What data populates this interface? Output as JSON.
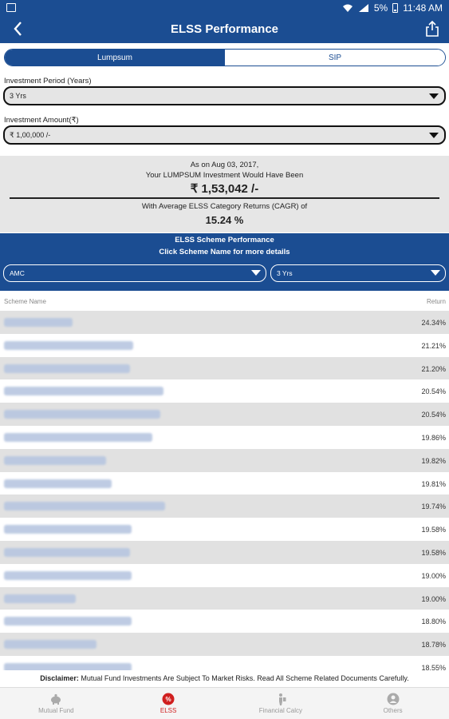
{
  "status": {
    "battery": "5%",
    "time": "11:48 AM"
  },
  "header": {
    "title": "ELSS Performance"
  },
  "tabs": [
    {
      "label": "Lumpsum",
      "active": true
    },
    {
      "label": "SIP",
      "active": false
    }
  ],
  "investment_period": {
    "label": "Investment Period (Years)",
    "value": "3 Yrs"
  },
  "investment_amount": {
    "label": "Investment Amount(₹)",
    "value": "₹ 1,00,000 /-"
  },
  "summary": {
    "as_on": "As on Aug 03, 2017,",
    "line2": "Your LUMPSUM Investment Would Have Been",
    "amount": "₹ 1,53,042 /-",
    "cagr_label": "With Average ELSS Category Returns (CAGR) of",
    "cagr_value": "15.24 %"
  },
  "performance": {
    "title": "ELSS Scheme Performance",
    "subtitle": "Click Scheme Name for more details",
    "amc_filter": "AMC",
    "period_filter": "3 Yrs"
  },
  "list_header": {
    "name": "Scheme Name",
    "return": "Return"
  },
  "rows": [
    {
      "return": "24.34%"
    },
    {
      "return": "21.21%"
    },
    {
      "return": "21.20%"
    },
    {
      "return": "20.54%"
    },
    {
      "return": "20.54%"
    },
    {
      "return": "19.86%"
    },
    {
      "return": "19.82%"
    },
    {
      "return": "19.81%"
    },
    {
      "return": "19.74%"
    },
    {
      "return": "19.58%"
    },
    {
      "return": "19.58%"
    },
    {
      "return": "19.00%"
    },
    {
      "return": "19.00%"
    },
    {
      "return": "18.80%"
    },
    {
      "return": "18.78%"
    },
    {
      "return": "18.55%"
    }
  ],
  "disclaimer": {
    "label": "Disclaimer:",
    "text": "Mutual Fund Investments Are Subject To Market Risks. Read All Scheme Related Documents Carefully."
  },
  "bottom_nav": [
    {
      "label": "Mutual Fund",
      "icon": "piggy-bank-icon"
    },
    {
      "label": "ELSS",
      "icon": "tax-percent-icon",
      "active": true
    },
    {
      "label": "Financial Calcy",
      "icon": "person-calc-icon"
    },
    {
      "label": "Others",
      "icon": "user-icon"
    }
  ],
  "colors": {
    "primary": "#1b4d92",
    "active_nav": "#d01f1f",
    "row_alt": "#e1e1e1"
  }
}
